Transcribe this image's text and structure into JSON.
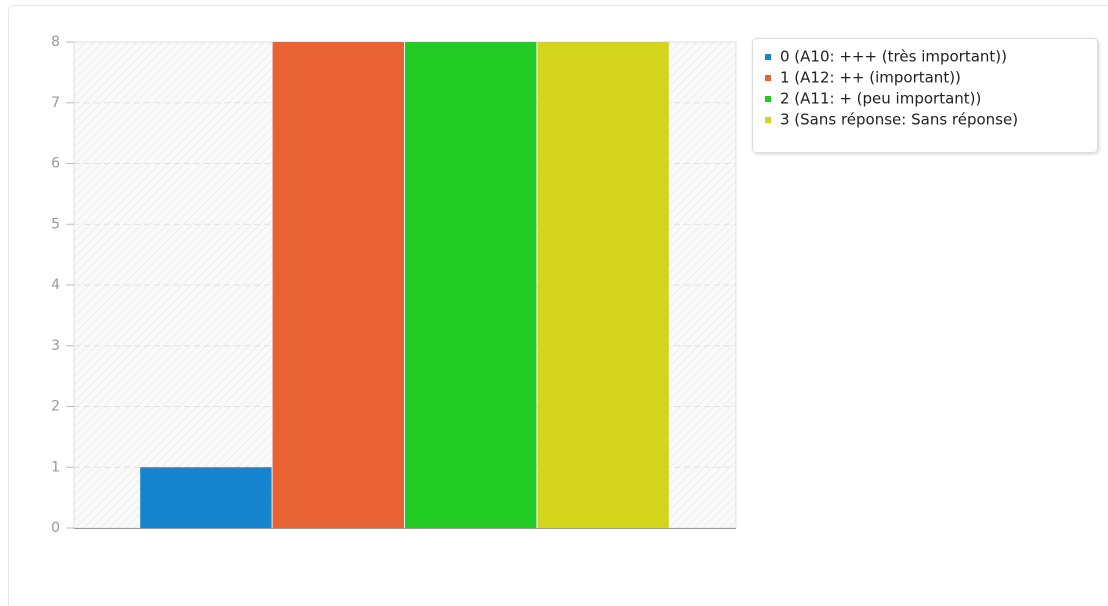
{
  "chart_data": {
    "type": "bar",
    "categories": [
      null
    ],
    "series": [
      {
        "name": "0 (A10: +++ (très important))",
        "color": "#1585cf",
        "values": [
          1
        ]
      },
      {
        "name": "1 (A12: ++ (important))",
        "color": "#e86233",
        "values": [
          8
        ]
      },
      {
        "name": "2 (A11: + (peu important))",
        "color": "#21cb24",
        "values": [
          8
        ]
      },
      {
        "name": "3 (Sans réponse: Sans réponse)",
        "color": "#d4d41c",
        "values": [
          8
        ]
      }
    ],
    "ylim": [
      0,
      8
    ],
    "yticks": [
      0,
      1,
      2,
      3,
      4,
      5,
      6,
      7,
      8
    ],
    "grid": true,
    "legend": "right"
  }
}
